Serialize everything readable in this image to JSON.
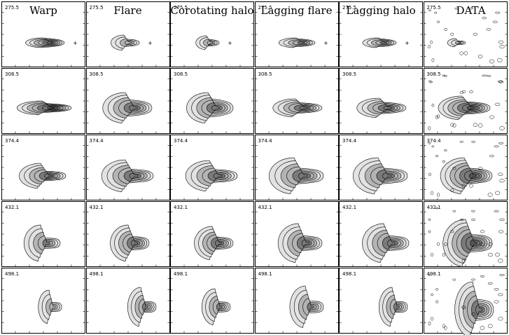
{
  "figure": {
    "columns": [
      {
        "title": "Warp"
      },
      {
        "title": "Flare"
      },
      {
        "title": "Corotating halo"
      },
      {
        "title": "Lagging flare"
      },
      {
        "title": "Lagging halo"
      },
      {
        "title": "DATA"
      }
    ],
    "rows": [
      {
        "velocity": "275.5"
      },
      {
        "velocity": "308.5"
      },
      {
        "velocity": "374.4"
      },
      {
        "velocity": "432.1"
      },
      {
        "velocity": "498.1"
      }
    ],
    "palette": {
      "frame": "#000000",
      "shade_light": "#e2e2e2",
      "shade_mid": "#b4b4b4",
      "shade_dark": "#7a7a7a",
      "contour": "#000000"
    }
  }
}
